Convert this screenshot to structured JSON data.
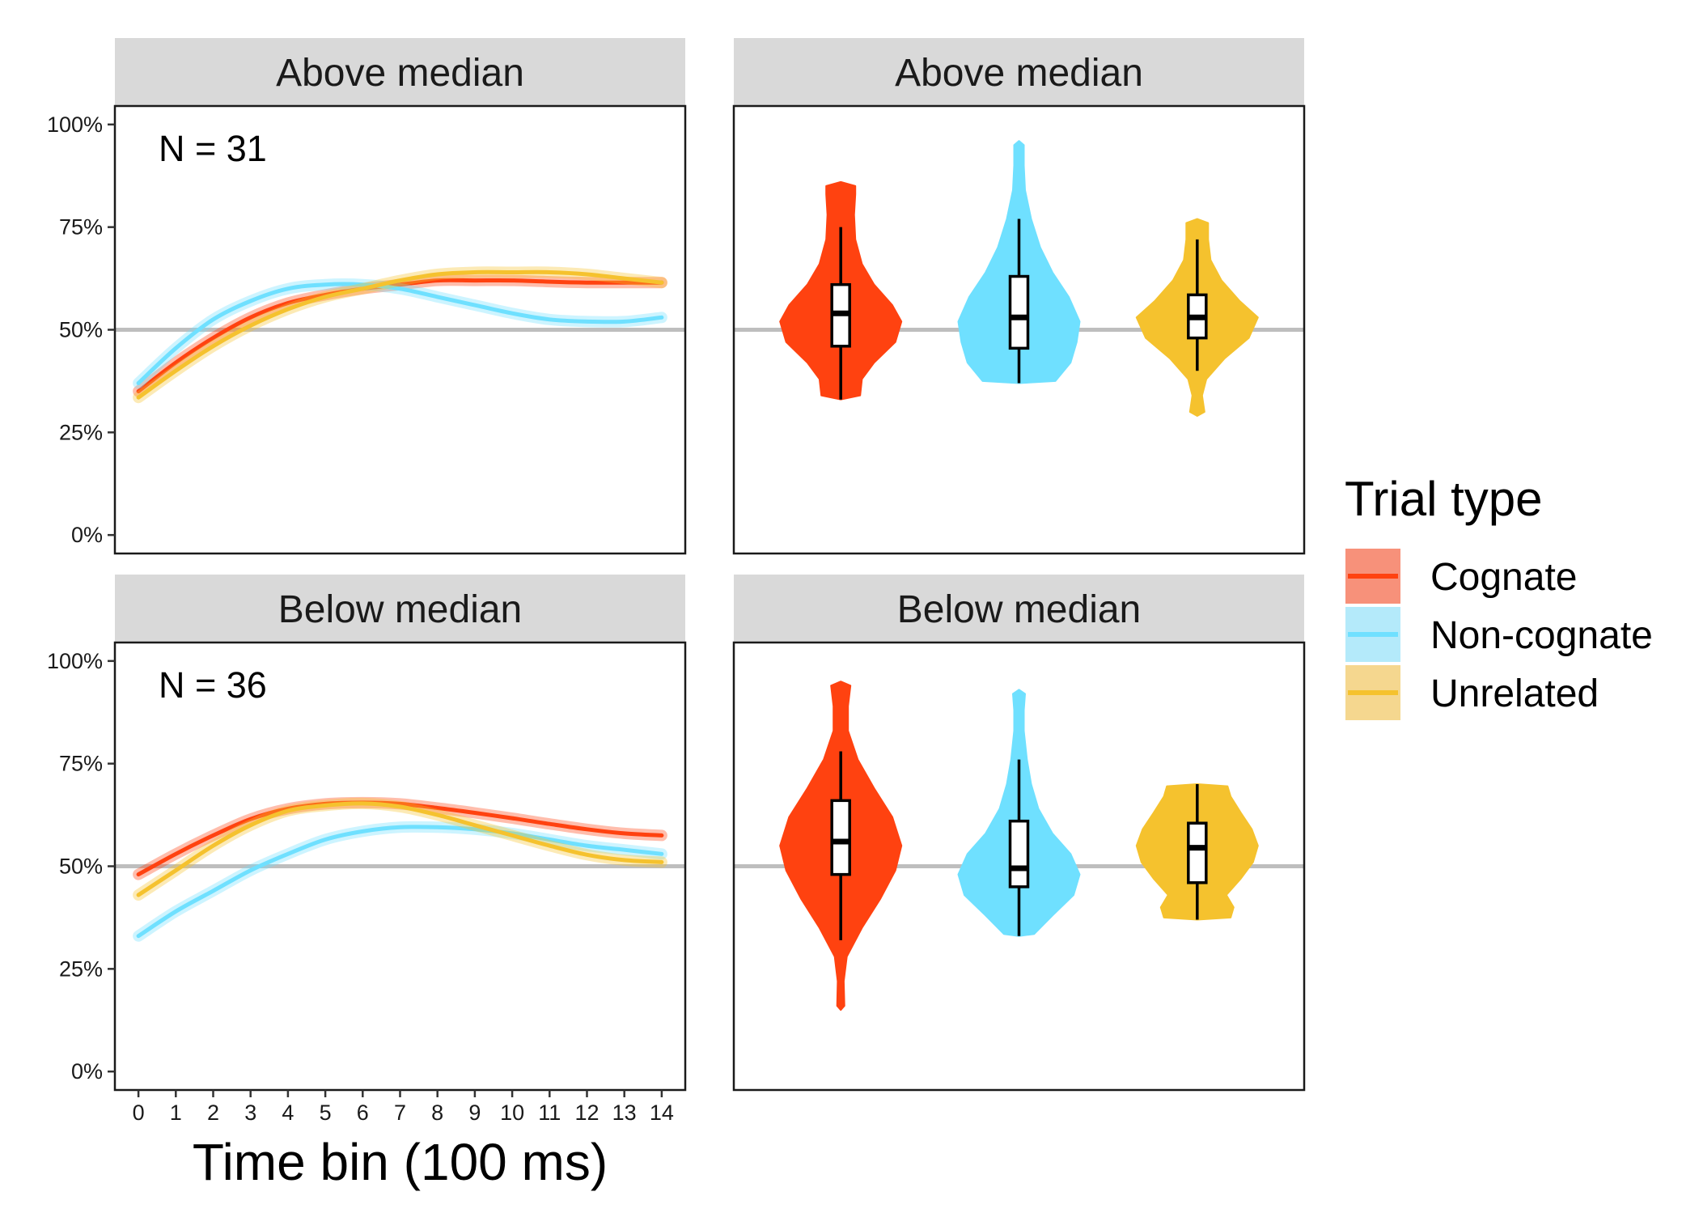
{
  "chart_data": [
    {
      "type": "line",
      "panel": "Above median",
      "annotation": "N = 31",
      "xlabel": "Time bin (100 ms)",
      "ylabel": "",
      "x": [
        0,
        1,
        2,
        3,
        4,
        5,
        6,
        7,
        8,
        9,
        10,
        11,
        12,
        13,
        14
      ],
      "xticks": [
        "0",
        "1",
        "2",
        "3",
        "4",
        "5",
        "6",
        "7",
        "8",
        "9",
        "10",
        "11",
        "12",
        "13",
        "14"
      ],
      "yticks": [
        "0%",
        "25%",
        "50%",
        "75%",
        "100%"
      ],
      "ylim": [
        0,
        1
      ],
      "reference_line": 0.5,
      "series": [
        {
          "name": "Cognate",
          "values": [
            0.35,
            0.42,
            0.48,
            0.53,
            0.565,
            0.585,
            0.6,
            0.61,
            0.62,
            0.62,
            0.62,
            0.617,
            0.615,
            0.615,
            0.615
          ]
        },
        {
          "name": "Non-cognate",
          "values": [
            0.37,
            0.455,
            0.525,
            0.57,
            0.6,
            0.61,
            0.61,
            0.6,
            0.58,
            0.56,
            0.54,
            0.525,
            0.52,
            0.52,
            0.53
          ]
        },
        {
          "name": "Unrelated",
          "values": [
            0.335,
            0.4,
            0.46,
            0.51,
            0.55,
            0.58,
            0.6,
            0.62,
            0.635,
            0.64,
            0.64,
            0.64,
            0.635,
            0.625,
            0.615
          ]
        }
      ]
    },
    {
      "type": "violin",
      "panel": "Above median",
      "categories": [
        "Cognate",
        "Non-cognate",
        "Unrelated"
      ],
      "ylim": [
        0,
        1
      ],
      "reference_line": 0.5,
      "series": [
        {
          "name": "Cognate",
          "min": 0.33,
          "max": 0.86,
          "whisker_low": 0.33,
          "whisker_high": 0.75,
          "q1": 0.46,
          "median": 0.54,
          "q3": 0.61,
          "density": [
            [
              0.33,
              0.0
            ],
            [
              0.34,
              0.32
            ],
            [
              0.38,
              0.35
            ],
            [
              0.42,
              0.55
            ],
            [
              0.47,
              0.9
            ],
            [
              0.52,
              1.0
            ],
            [
              0.56,
              0.85
            ],
            [
              0.61,
              0.55
            ],
            [
              0.66,
              0.35
            ],
            [
              0.72,
              0.24
            ],
            [
              0.78,
              0.22
            ],
            [
              0.83,
              0.24
            ],
            [
              0.85,
              0.24
            ],
            [
              0.86,
              0.0
            ]
          ]
        },
        {
          "name": "Non-cognate",
          "min": 0.37,
          "max": 0.96,
          "whisker_low": 0.37,
          "whisker_high": 0.77,
          "q1": 0.455,
          "median": 0.53,
          "q3": 0.63,
          "density": [
            [
              0.37,
              0.0
            ],
            [
              0.375,
              0.6
            ],
            [
              0.42,
              0.85
            ],
            [
              0.47,
              0.95
            ],
            [
              0.52,
              1.0
            ],
            [
              0.58,
              0.82
            ],
            [
              0.64,
              0.55
            ],
            [
              0.7,
              0.35
            ],
            [
              0.77,
              0.2
            ],
            [
              0.84,
              0.1
            ],
            [
              0.9,
              0.08
            ],
            [
              0.95,
              0.08
            ],
            [
              0.96,
              0.0
            ]
          ]
        },
        {
          "name": "Unrelated",
          "min": 0.29,
          "max": 0.77,
          "whisker_low": 0.4,
          "whisker_high": 0.72,
          "q1": 0.48,
          "median": 0.53,
          "q3": 0.585,
          "density": [
            [
              0.29,
              0.0
            ],
            [
              0.3,
              0.12
            ],
            [
              0.34,
              0.08
            ],
            [
              0.38,
              0.15
            ],
            [
              0.43,
              0.45
            ],
            [
              0.48,
              0.85
            ],
            [
              0.53,
              1.0
            ],
            [
              0.57,
              0.7
            ],
            [
              0.62,
              0.4
            ],
            [
              0.67,
              0.22
            ],
            [
              0.72,
              0.18
            ],
            [
              0.76,
              0.18
            ],
            [
              0.77,
              0.0
            ]
          ]
        }
      ]
    },
    {
      "type": "line",
      "panel": "Below median",
      "annotation": "N = 36",
      "xlabel": "Time bin (100 ms)",
      "ylabel": "",
      "x": [
        0,
        1,
        2,
        3,
        4,
        5,
        6,
        7,
        8,
        9,
        10,
        11,
        12,
        13,
        14
      ],
      "xticks": [
        "0",
        "1",
        "2",
        "3",
        "4",
        "5",
        "6",
        "7",
        "8",
        "9",
        "10",
        "11",
        "12",
        "13",
        "14"
      ],
      "yticks": [
        "0%",
        "25%",
        "50%",
        "75%",
        "100%"
      ],
      "ylim": [
        0,
        1
      ],
      "reference_line": 0.5,
      "series": [
        {
          "name": "Cognate",
          "values": [
            0.48,
            0.53,
            0.575,
            0.615,
            0.64,
            0.652,
            0.655,
            0.652,
            0.642,
            0.63,
            0.617,
            0.603,
            0.59,
            0.58,
            0.575
          ]
        },
        {
          "name": "Non-cognate",
          "values": [
            0.33,
            0.39,
            0.44,
            0.49,
            0.53,
            0.565,
            0.585,
            0.595,
            0.595,
            0.59,
            0.58,
            0.565,
            0.55,
            0.54,
            0.53
          ]
        },
        {
          "name": "Unrelated",
          "values": [
            0.43,
            0.49,
            0.55,
            0.6,
            0.635,
            0.648,
            0.653,
            0.645,
            0.625,
            0.6,
            0.575,
            0.55,
            0.528,
            0.515,
            0.51
          ]
        }
      ]
    },
    {
      "type": "violin",
      "panel": "Below median",
      "categories": [
        "Cognate",
        "Non-cognate",
        "Unrelated"
      ],
      "ylim": [
        0,
        1
      ],
      "reference_line": 0.5,
      "series": [
        {
          "name": "Cognate",
          "min": 0.15,
          "max": 0.95,
          "whisker_low": 0.32,
          "whisker_high": 0.78,
          "q1": 0.48,
          "median": 0.56,
          "q3": 0.66,
          "density": [
            [
              0.15,
              0.0
            ],
            [
              0.16,
              0.06
            ],
            [
              0.22,
              0.05
            ],
            [
              0.28,
              0.1
            ],
            [
              0.35,
              0.35
            ],
            [
              0.42,
              0.65
            ],
            [
              0.49,
              0.9
            ],
            [
              0.55,
              1.0
            ],
            [
              0.62,
              0.85
            ],
            [
              0.69,
              0.55
            ],
            [
              0.76,
              0.28
            ],
            [
              0.83,
              0.12
            ],
            [
              0.89,
              0.12
            ],
            [
              0.94,
              0.16
            ],
            [
              0.95,
              0.0
            ]
          ]
        },
        {
          "name": "Non-cognate",
          "min": 0.33,
          "max": 0.93,
          "whisker_low": 0.33,
          "whisker_high": 0.76,
          "q1": 0.45,
          "median": 0.495,
          "q3": 0.61,
          "density": [
            [
              0.33,
              0.0
            ],
            [
              0.335,
              0.25
            ],
            [
              0.38,
              0.55
            ],
            [
              0.43,
              0.9
            ],
            [
              0.48,
              1.0
            ],
            [
              0.53,
              0.85
            ],
            [
              0.58,
              0.55
            ],
            [
              0.64,
              0.32
            ],
            [
              0.7,
              0.2
            ],
            [
              0.76,
              0.13
            ],
            [
              0.83,
              0.08
            ],
            [
              0.88,
              0.08
            ],
            [
              0.92,
              0.1
            ],
            [
              0.93,
              0.0
            ]
          ]
        },
        {
          "name": "Unrelated",
          "min": 0.37,
          "max": 0.7,
          "whisker_low": 0.37,
          "whisker_high": 0.7,
          "q1": 0.46,
          "median": 0.545,
          "q3": 0.605,
          "density": [
            [
              0.37,
              0.0
            ],
            [
              0.375,
              0.55
            ],
            [
              0.4,
              0.6
            ],
            [
              0.43,
              0.48
            ],
            [
              0.47,
              0.72
            ],
            [
              0.51,
              0.92
            ],
            [
              0.55,
              1.0
            ],
            [
              0.59,
              0.9
            ],
            [
              0.63,
              0.72
            ],
            [
              0.67,
              0.55
            ],
            [
              0.695,
              0.5
            ],
            [
              0.7,
              0.0
            ]
          ]
        }
      ]
    }
  ],
  "strips": [
    "Above median",
    "Above median",
    "Below median",
    "Below median"
  ],
  "xaxis_title": "Time bin (100 ms)",
  "legend": {
    "title": "Trial type",
    "items": [
      {
        "label": "Cognate",
        "color": "#FF4210",
        "fill": "#F7917A"
      },
      {
        "label": "Non-cognate",
        "color": "#6FE0FF",
        "fill": "#B4EAFA"
      },
      {
        "label": "Unrelated",
        "color": "#F5C22E",
        "fill": "#F5D78F"
      }
    ]
  },
  "colors": {
    "Cognate": "#FF4210",
    "Non-cognate": "#6FE0FF",
    "Unrelated": "#F5C22E",
    "reference_line": "#BEBEBE",
    "strip_bg": "#D9D9D9"
  }
}
